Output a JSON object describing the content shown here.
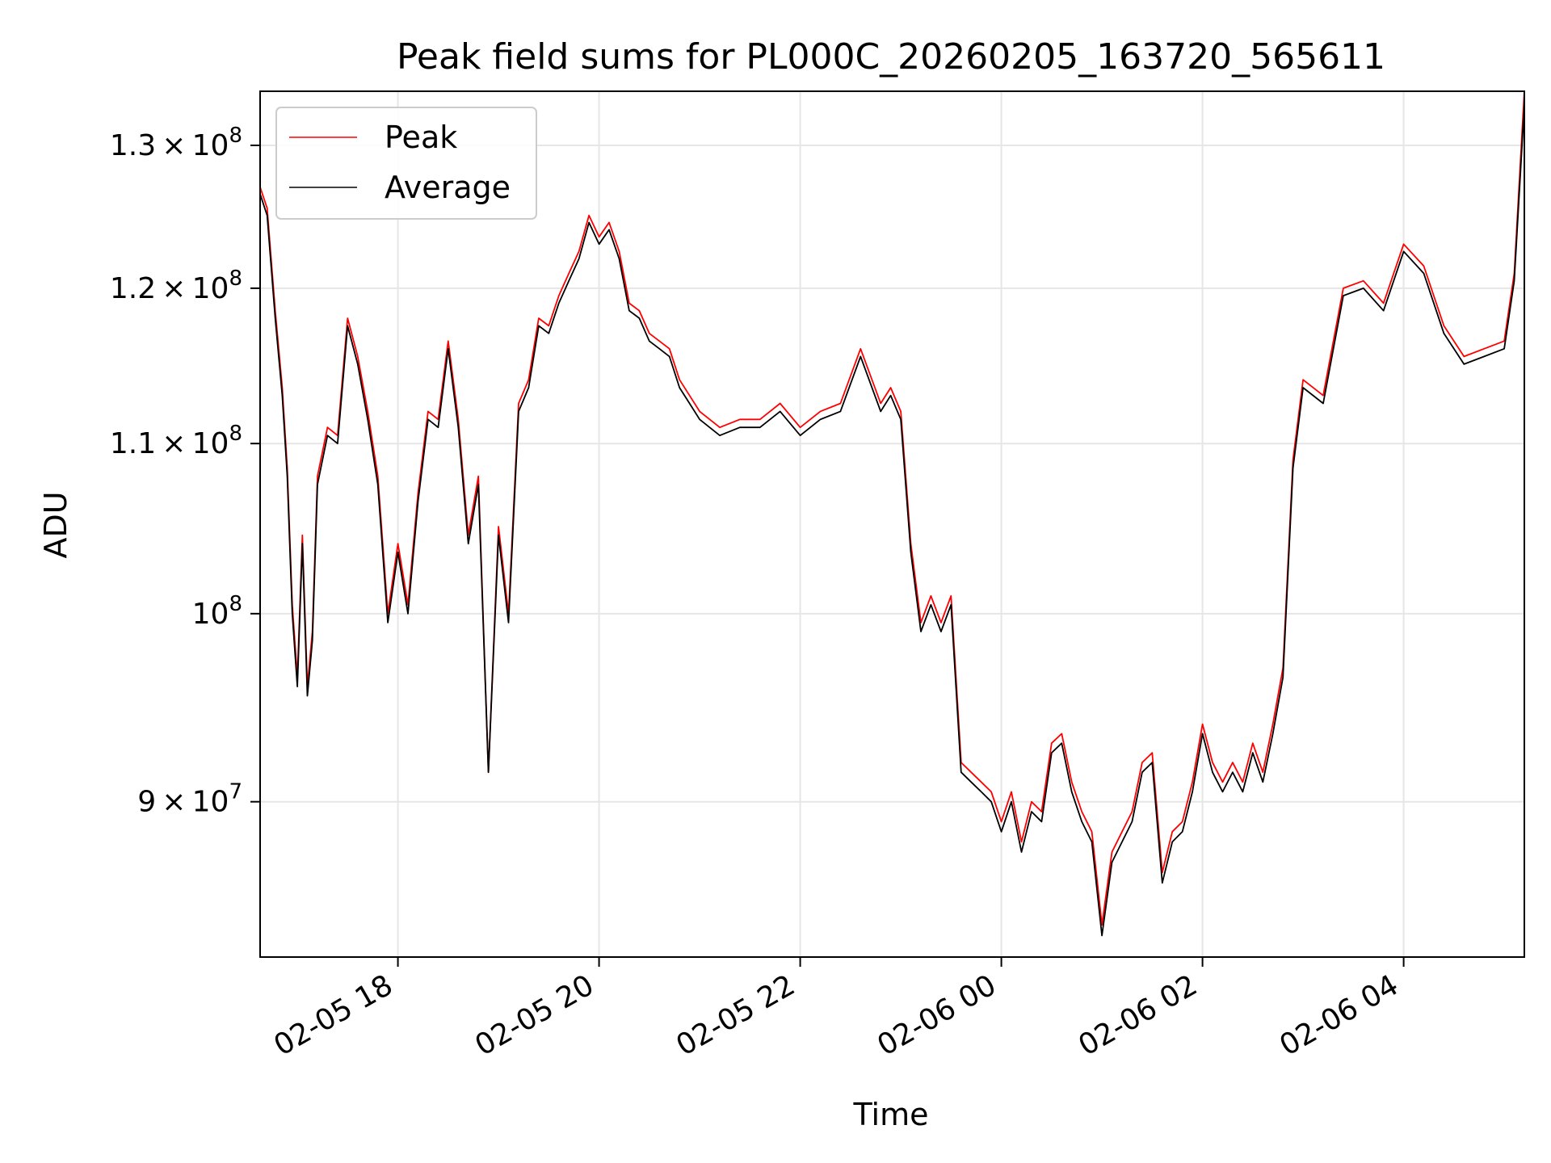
{
  "chart_data": {
    "type": "line",
    "title": "Peak field sums for PL000C_20260205_163720_565611",
    "xlabel": "Time",
    "ylabel": "ADU",
    "yscale": "log",
    "grid": true,
    "legend_position": "top-left",
    "x_unit": "hours since 2026-02-05 00:00",
    "xlim": [
      16.63,
      29.2
    ],
    "ylim": [
      82500000,
      134000000
    ],
    "x_ticks": [
      {
        "value": 18,
        "label": "02-05 18"
      },
      {
        "value": 20,
        "label": "02-05 20"
      },
      {
        "value": 22,
        "label": "02-05 22"
      },
      {
        "value": 24,
        "label": "02-06 00"
      },
      {
        "value": 26,
        "label": "02-06 02"
      },
      {
        "value": 28,
        "label": "02-06 04"
      }
    ],
    "y_ticks": [
      {
        "value": 90000000,
        "label": "9×10^7",
        "mantissa": "9",
        "exponent": "7"
      },
      {
        "value": 100000000,
        "label": "10^8",
        "mantissa": "",
        "exponent": "8"
      },
      {
        "value": 110000000,
        "label": "1.1×10^8",
        "mantissa": "1.1",
        "exponent": "8"
      },
      {
        "value": 120000000,
        "label": "1.2×10^8",
        "mantissa": "1.2",
        "exponent": "8"
      },
      {
        "value": 130000000,
        "label": "1.3×10^8",
        "mantissa": "1.3",
        "exponent": "8"
      }
    ],
    "series": [
      {
        "name": "Peak",
        "color": "#ff0000",
        "x": [
          16.63,
          16.7,
          16.78,
          16.85,
          16.9,
          16.95,
          17.0,
          17.05,
          17.1,
          17.15,
          17.2,
          17.3,
          17.4,
          17.5,
          17.6,
          17.7,
          17.8,
          17.9,
          18.0,
          18.1,
          18.2,
          18.3,
          18.4,
          18.5,
          18.6,
          18.7,
          18.8,
          18.9,
          19.0,
          19.1,
          19.2,
          19.3,
          19.4,
          19.5,
          19.6,
          19.7,
          19.8,
          19.9,
          20.0,
          20.1,
          20.2,
          20.3,
          20.4,
          20.5,
          20.6,
          20.7,
          20.8,
          20.9,
          21.0,
          21.2,
          21.4,
          21.6,
          21.8,
          22.0,
          22.2,
          22.4,
          22.6,
          22.8,
          22.9,
          23.0,
          23.1,
          23.2,
          23.3,
          23.4,
          23.5,
          23.6,
          23.7,
          23.8,
          23.9,
          24.0,
          24.1,
          24.2,
          24.3,
          24.4,
          24.5,
          24.6,
          24.7,
          24.8,
          24.9,
          25.0,
          25.1,
          25.2,
          25.3,
          25.4,
          25.5,
          25.6,
          25.7,
          25.8,
          25.9,
          26.0,
          26.1,
          26.2,
          26.3,
          26.4,
          26.5,
          26.6,
          26.7,
          26.8,
          26.9,
          27.0,
          27.2,
          27.4,
          27.6,
          27.8,
          28.0,
          28.2,
          28.4,
          28.6,
          28.8,
          29.0,
          29.1,
          29.2
        ],
        "values": [
          127000000,
          125500000,
          118500000,
          113500000,
          108500000,
          100500000,
          96500000,
          104500000,
          96000000,
          99000000,
          108000000,
          111000000,
          110500000,
          118000000,
          115500000,
          112000000,
          108000000,
          100000000,
          104000000,
          100500000,
          107000000,
          112000000,
          111500000,
          116500000,
          111500000,
          104500000,
          108000000,
          91500000,
          105000000,
          100000000,
          112500000,
          114000000,
          118000000,
          117500000,
          119500000,
          121000000,
          122500000,
          125000000,
          123500000,
          124500000,
          122500000,
          119000000,
          118500000,
          117000000,
          116500000,
          116000000,
          114000000,
          113000000,
          112000000,
          111000000,
          111500000,
          111500000,
          112500000,
          111000000,
          112000000,
          112500000,
          116000000,
          112500000,
          113500000,
          112000000,
          104000000,
          99500000,
          101000000,
          99500000,
          101000000,
          92000000,
          91500000,
          91000000,
          90500000,
          89000000,
          90500000,
          88000000,
          90000000,
          89500000,
          93000000,
          93500000,
          91000000,
          89500000,
          88500000,
          84000000,
          87500000,
          88500000,
          89500000,
          92000000,
          92500000,
          86500000,
          88500000,
          89000000,
          91000000,
          94000000,
          92000000,
          91000000,
          92000000,
          91000000,
          93000000,
          91500000,
          94000000,
          97000000,
          109000000,
          114000000,
          113000000,
          120000000,
          120500000,
          119000000,
          123000000,
          121500000,
          117500000,
          115500000,
          116000000,
          116500000,
          121000000,
          134000000
        ]
      },
      {
        "name": "Average",
        "color": "#000000",
        "x": [
          16.63,
          16.7,
          16.78,
          16.85,
          16.9,
          16.95,
          17.0,
          17.05,
          17.1,
          17.15,
          17.2,
          17.3,
          17.4,
          17.5,
          17.6,
          17.7,
          17.8,
          17.9,
          18.0,
          18.1,
          18.2,
          18.3,
          18.4,
          18.5,
          18.6,
          18.7,
          18.8,
          18.9,
          19.0,
          19.1,
          19.2,
          19.3,
          19.4,
          19.5,
          19.6,
          19.7,
          19.8,
          19.9,
          20.0,
          20.1,
          20.2,
          20.3,
          20.4,
          20.5,
          20.6,
          20.7,
          20.8,
          20.9,
          21.0,
          21.2,
          21.4,
          21.6,
          21.8,
          22.0,
          22.2,
          22.4,
          22.6,
          22.8,
          22.9,
          23.0,
          23.1,
          23.2,
          23.3,
          23.4,
          23.5,
          23.6,
          23.7,
          23.8,
          23.9,
          24.0,
          24.1,
          24.2,
          24.3,
          24.4,
          24.5,
          24.6,
          24.7,
          24.8,
          24.9,
          25.0,
          25.1,
          25.2,
          25.3,
          25.4,
          25.5,
          25.6,
          25.7,
          25.8,
          25.9,
          26.0,
          26.1,
          26.2,
          26.3,
          26.4,
          26.5,
          26.6,
          26.7,
          26.8,
          26.9,
          27.0,
          27.2,
          27.4,
          27.6,
          27.8,
          28.0,
          28.2,
          28.4,
          28.6,
          28.8,
          29.0,
          29.1,
          29.2
        ],
        "values": [
          126500000,
          125000000,
          118000000,
          113000000,
          108000000,
          100000000,
          96000000,
          104000000,
          95500000,
          98500000,
          107500000,
          110500000,
          110000000,
          117500000,
          115000000,
          111500000,
          107500000,
          99500000,
          103500000,
          100000000,
          106500000,
          111500000,
          111000000,
          116000000,
          111000000,
          104000000,
          107500000,
          91500000,
          104500000,
          99500000,
          112000000,
          113500000,
          117500000,
          117000000,
          119000000,
          120500000,
          122000000,
          124500000,
          123000000,
          124000000,
          122000000,
          118500000,
          118000000,
          116500000,
          116000000,
          115500000,
          113500000,
          112500000,
          111500000,
          110500000,
          111000000,
          111000000,
          112000000,
          110500000,
          111500000,
          112000000,
          115500000,
          112000000,
          113000000,
          111500000,
          103500000,
          99000000,
          100500000,
          99000000,
          100500000,
          91500000,
          91000000,
          90500000,
          90000000,
          88500000,
          90000000,
          87500000,
          89500000,
          89000000,
          92500000,
          93000000,
          90500000,
          89000000,
          88000000,
          83500000,
          87000000,
          88000000,
          89000000,
          91500000,
          92000000,
          86000000,
          88000000,
          88500000,
          90500000,
          93500000,
          91500000,
          90500000,
          91500000,
          90500000,
          92500000,
          91000000,
          93500000,
          96500000,
          108500000,
          113500000,
          112500000,
          119500000,
          120000000,
          118500000,
          122500000,
          121000000,
          117000000,
          115000000,
          115500000,
          116000000,
          120500000,
          133000000
        ]
      }
    ]
  }
}
